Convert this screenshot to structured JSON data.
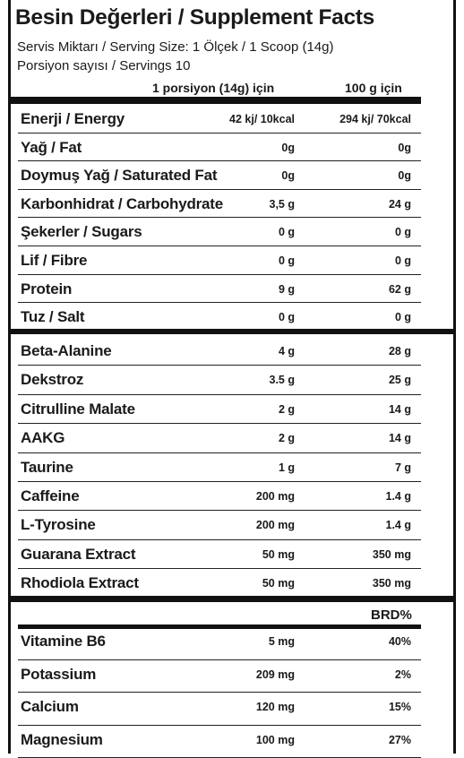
{
  "title": "Besin Değerleri / Supplement Facts",
  "serving_size": "Servis Miktarı / Serving Size: 1 Ölçek / 1 Scoop (14g)",
  "servings": "Porsiyon sayısı / Servings 10",
  "columns": {
    "per_serving": "1 porsiyon (14g) için",
    "per_100g": "100 g için"
  },
  "nutrition": [
    {
      "label": "Enerji / Energy",
      "serving": "42 kj/ 10kcal",
      "per100": "294 kj/ 70kcal"
    },
    {
      "label": "Yağ / Fat",
      "serving": "0g",
      "per100": "0g"
    },
    {
      "label": "Doymuş Yağ / Saturated Fat",
      "serving": "0g",
      "per100": "0g"
    },
    {
      "label": "Karbonhidrat / Carbohydrate",
      "serving": "3,5 g",
      "per100": "24 g"
    },
    {
      "label": "Şekerler / Sugars",
      "serving": "0 g",
      "per100": "0 g"
    },
    {
      "label": "Lif / Fibre",
      "serving": "0 g",
      "per100": "0 g"
    },
    {
      "label": "Protein",
      "serving": "9 g",
      "per100": "62 g"
    },
    {
      "label": "Tuz / Salt",
      "serving": "0 g",
      "per100": "0 g"
    }
  ],
  "ingredients": [
    {
      "label": "Beta-Alanine",
      "serving": "4 g",
      "per100": "28 g"
    },
    {
      "label": "Dekstroz",
      "serving": "3.5  g",
      "per100": "25  g"
    },
    {
      "label": "Citrulline Malate",
      "serving": "2 g",
      "per100": "14 g"
    },
    {
      "label": "AAKG",
      "serving": "2 g",
      "per100": "14 g"
    },
    {
      "label": "Taurine",
      "serving": "1 g",
      "per100": "7 g"
    },
    {
      "label": "Caffeine",
      "serving": "200 mg",
      "per100": "1.4 g"
    },
    {
      "label": "L-Tyrosine",
      "serving": "200 mg",
      "per100": "1.4 g"
    },
    {
      "label": "Guarana Extract",
      "serving": "50 mg",
      "per100": "350 mg"
    },
    {
      "label": "Rhodiola Extract",
      "serving": "50 mg",
      "per100": "350 mg"
    }
  ],
  "rdi_header": "BRD%",
  "vitamins": [
    {
      "label": "Vitamine B6",
      "serving": "5 mg",
      "per100": "40%"
    },
    {
      "label": "Potassium",
      "serving": "209 mg",
      "per100": "2%"
    },
    {
      "label": "Calcium",
      "serving": "120 mg",
      "per100": "15%"
    },
    {
      "label": "Magnesium",
      "serving": "100 mg",
      "per100": "27%"
    }
  ]
}
